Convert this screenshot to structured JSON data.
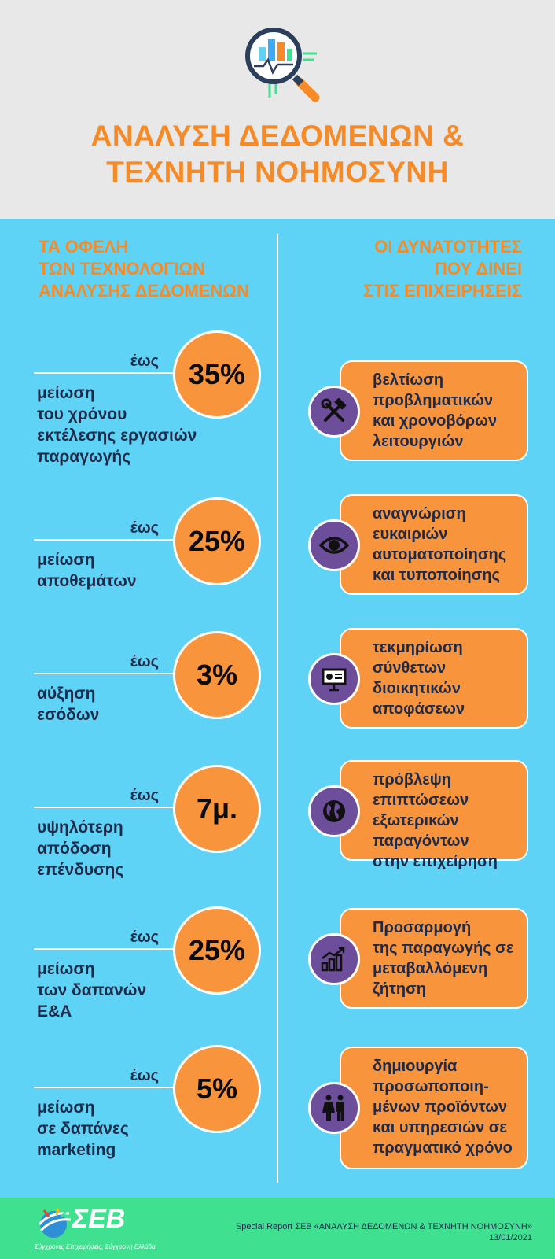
{
  "header": {
    "icon": "magnifier-chart-icon",
    "title_line1": "ΑΝΑΛΥΣΗ ΔΕΔΟΜΕΝΩΝ &",
    "title_line2": "ΤΕΧΝΗΤΗ ΝΟΗΜΟΣΥΝΗ"
  },
  "left_heading": [
    "ΤΑ ΟΦΕΛΗ",
    "ΤΩΝ ΤΕΧΝΟΛΟΓΙΩΝ",
    "ΑΝΑΛΥΣΗΣ ΔΕΔΟΜΕΝΩΝ"
  ],
  "right_heading": [
    "ΟΙ ΔΥΝΑΤΟΤΗΤΕΣ",
    "ΠΟΥ ΔΙΝΕΙ",
    "ΣΤΙΣ ΕΠΙΧΕΙΡΗΣΕΙΣ"
  ],
  "benefits": [
    {
      "prefix": "έως",
      "value": "35%",
      "desc": [
        "μείωση",
        "του χρόνου",
        "εκτέλεσης εργασιών",
        "παραγωγής"
      ]
    },
    {
      "prefix": "έως",
      "value": "25%",
      "desc": [
        "μείωση",
        "αποθεμάτων"
      ]
    },
    {
      "prefix": "έως",
      "value": "3%",
      "desc": [
        "αύξηση",
        "εσόδων"
      ]
    },
    {
      "prefix": "έως",
      "value": "7μ.",
      "desc": [
        "υψηλότερη",
        "απόδοση",
        "επένδυσης"
      ]
    },
    {
      "prefix": "έως",
      "value": "25%",
      "desc": [
        "μείωση",
        "των δαπανών",
        "Ε&Α"
      ]
    },
    {
      "prefix": "έως",
      "value": "5%",
      "desc": [
        "μείωση",
        "σε δαπάνες",
        "marketing"
      ]
    }
  ],
  "capabilities": [
    {
      "icon": "tools-icon",
      "text": [
        "βελτίωση",
        "προβληματικών",
        "και χρονοβόρων",
        "λειτουργιών"
      ]
    },
    {
      "icon": "eye-icon",
      "text": [
        "αναγνώριση",
        "ευκαιριών",
        "αυτοματοποίησης",
        "και τυποποίησης"
      ]
    },
    {
      "icon": "presentation-board-icon",
      "text": [
        "τεκμηρίωση",
        "σύνθετων",
        "διοικητικών",
        "αποφάσεων"
      ]
    },
    {
      "icon": "globe-icon",
      "text": [
        "πρόβλεψη",
        "επιπτώσεων",
        "εξωτερικών",
        "παραγόντων",
        "στην επιχείρηση"
      ]
    },
    {
      "icon": "growth-chart-icon",
      "text": [
        "Προσαρμογή",
        "της παραγωγής σε",
        "μεταβαλλόμενη",
        "ζήτηση"
      ]
    },
    {
      "icon": "people-icon",
      "text": [
        "δημιουργία",
        "προσωποποιη-",
        "μένων προϊόντων",
        "και υπηρεσιών σε",
        "πραγματικό χρόνο"
      ]
    }
  ],
  "footer": {
    "logo": "ΣΕΒ",
    "tagline": "Σύγχρονες Επιχειρήσεις, Σύγχρονη Ελλάδα",
    "report_line1": "Special Report ΣΕΒ «ΑΝΑΛΥΣΗ ΔΕΔΟΜΕΝΩΝ & ΤΕΧΝΗΤΗ ΝΟΗΜΟΣΥΝΗ»",
    "report_line2": "13/01/2021"
  },
  "colors": {
    "orange": "#f7943c",
    "title_orange": "#f58a26",
    "sky_blue": "#5fd3f5",
    "purple": "#6d4e9a",
    "green": "#3fe190",
    "navy_text": "#1e2a4a"
  }
}
